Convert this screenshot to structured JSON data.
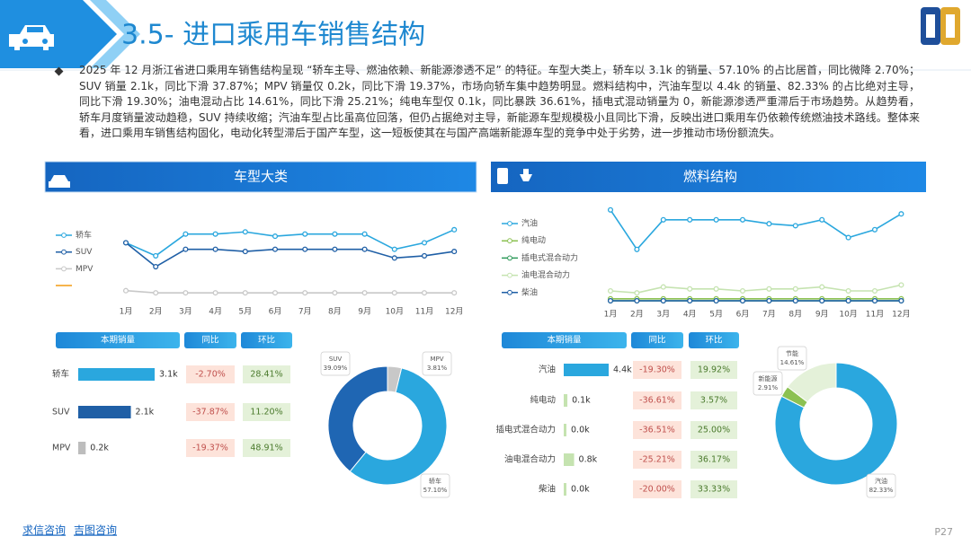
{
  "header": {
    "title": "3.5- 进口乘用车销售结构"
  },
  "intro": "2025 年 12 月浙江省进口乘用车销售结构呈现 “轿车主导、燃油依赖、新能源渗透不足” 的特征。车型大类上，轿车以 3.1k 的销量、57.10% 的占比居首，同比微降 2.70%；SUV 销量 2.1k，同比下滑 37.87%；MPV 销量仅 0.2k，同比下滑 19.37%，市场向轿车集中趋势明显。燃料结构中，汽油车型以 4.4k 的销量、82.33% 的占比绝对主导，同比下滑 19.30%；油电混动占比 14.61%，同比下滑 25.21%；纯电车型仅 0.1k，同比暴跌 36.61%，插电式混动销量为 0，新能源渗透严重滞后于市场趋势。从趋势看，轿车月度销量波动趋稳，SUV 持续收缩；汽油车型占比虽高位回落，但仍占据绝对主导，新能源车型规模极小且同比下滑，反映出进口乘用车仍依赖传统燃油技术路线。整体来看，进口乘用车销售结构固化，电动化转型滞后于国产车型，这一短板使其在与国产高端新能源车型的竞争中处于劣势，进一步推动市场份额流失。",
  "panels": [
    {
      "title": "车型大类"
    },
    {
      "title": "燃料结构"
    }
  ],
  "chart_data": [
    {
      "type": "line",
      "categories": [
        "1月",
        "2月",
        "3月",
        "4月",
        "5月",
        "6月",
        "7月",
        "8月",
        "9月",
        "10月",
        "11月",
        "12月"
      ],
      "ylim": [
        0,
        4
      ],
      "series": [
        {
          "name": "轿车",
          "color": "#2aa7de",
          "values": [
            2.5,
            1.9,
            2.9,
            2.9,
            3.0,
            2.8,
            2.9,
            2.9,
            2.9,
            2.2,
            2.5,
            3.1
          ]
        },
        {
          "name": "SUV",
          "color": "#1f5fa6",
          "values": [
            2.5,
            1.4,
            2.2,
            2.2,
            2.1,
            2.2,
            2.2,
            2.2,
            2.2,
            1.8,
            1.9,
            2.1
          ]
        },
        {
          "name": "MPV",
          "color": "#c8c8c8",
          "values": [
            0.3,
            0.2,
            0.2,
            0.2,
            0.2,
            0.2,
            0.2,
            0.2,
            0.2,
            0.2,
            0.2,
            0.2
          ]
        }
      ]
    },
    {
      "type": "line",
      "categories": [
        "1月",
        "2月",
        "3月",
        "4月",
        "5月",
        "6月",
        "7月",
        "8月",
        "9月",
        "10月",
        "11月",
        "12月"
      ],
      "ylim": [
        0,
        5
      ],
      "series": [
        {
          "name": "汽油",
          "color": "#2aa7de",
          "values": [
            4.6,
            2.6,
            4.1,
            4.1,
            4.1,
            4.1,
            3.9,
            3.8,
            4.1,
            3.2,
            3.6,
            4.4
          ]
        },
        {
          "name": "纯电动",
          "color": "#8cc152",
          "values": [
            0.1,
            0.1,
            0.1,
            0.1,
            0.1,
            0.1,
            0.1,
            0.1,
            0.1,
            0.1,
            0.1,
            0.1
          ]
        },
        {
          "name": "插电式混合动力",
          "color": "#2e9a5a",
          "values": [
            0,
            0,
            0,
            0,
            0,
            0,
            0,
            0,
            0,
            0,
            0,
            0
          ]
        },
        {
          "name": "油电混合动力",
          "color": "#c5e3b0",
          "values": [
            0.5,
            0.4,
            0.7,
            0.6,
            0.6,
            0.5,
            0.6,
            0.6,
            0.7,
            0.5,
            0.5,
            0.8
          ]
        },
        {
          "name": "柴油",
          "color": "#1f5fa6",
          "values": [
            0,
            0,
            0,
            0,
            0,
            0,
            0,
            0,
            0,
            0,
            0,
            0
          ]
        }
      ]
    },
    {
      "type": "hbar",
      "categories": [
        "轿车",
        "SUV",
        "MPV"
      ],
      "values": [
        3.1,
        2.1,
        0.2
      ],
      "value_labels": [
        "3.1k",
        "2.1k",
        "0.2k"
      ],
      "colors": [
        "#2aa7de",
        "#1f5fa6",
        "#bdbdbd"
      ]
    },
    {
      "type": "hbar",
      "categories": [
        "汽油",
        "纯电动",
        "插电式混合动力",
        "油电混合动力",
        "柴油"
      ],
      "values": [
        4.4,
        0.1,
        0.0,
        0.8,
        0.0
      ],
      "value_labels": [
        "4.4k",
        "0.1k",
        "0.0k",
        "0.8k",
        "0.0k"
      ],
      "colors": [
        "#2aa7de",
        "#c5e3b0",
        "#c5e3b0",
        "#c5e3b0",
        "#c5e3b0"
      ]
    },
    {
      "type": "donut",
      "categories": [
        "轿车",
        "SUV",
        "MPV"
      ],
      "values": [
        57.1,
        39.09,
        3.81
      ],
      "value_labels": [
        "57.10%",
        "39.09%",
        "3.81%"
      ],
      "colors": [
        "#2aa7de",
        "#1f66b3",
        "#c8c8c8"
      ]
    },
    {
      "type": "donut",
      "categories": [
        "汽油",
        "新能源",
        "节能"
      ],
      "values": [
        82.33,
        2.91,
        14.61
      ],
      "value_labels": [
        "82.33%",
        "2.91%",
        "14.61%"
      ],
      "colors": [
        "#2aa7de",
        "#8cc152",
        "#e4f1d9"
      ]
    }
  ],
  "tables": [
    {
      "columns": [
        "本期销量",
        "同比",
        "环比"
      ],
      "yoy": [
        "-2.70%",
        "-37.87%",
        "-19.37%"
      ],
      "mom": [
        "28.41%",
        "11.20%",
        "48.91%"
      ]
    },
    {
      "columns": [
        "本期销量",
        "同比",
        "环比"
      ],
      "yoy": [
        "-19.30%",
        "-36.61%",
        "-36.51%",
        "-25.21%",
        "-20.00%"
      ],
      "mom": [
        "19.92%",
        "3.57%",
        "25.00%",
        "36.17%",
        "33.33%"
      ]
    }
  ],
  "footer": {
    "links": [
      "求信咨询",
      "吉图咨询"
    ],
    "page": "P27"
  }
}
